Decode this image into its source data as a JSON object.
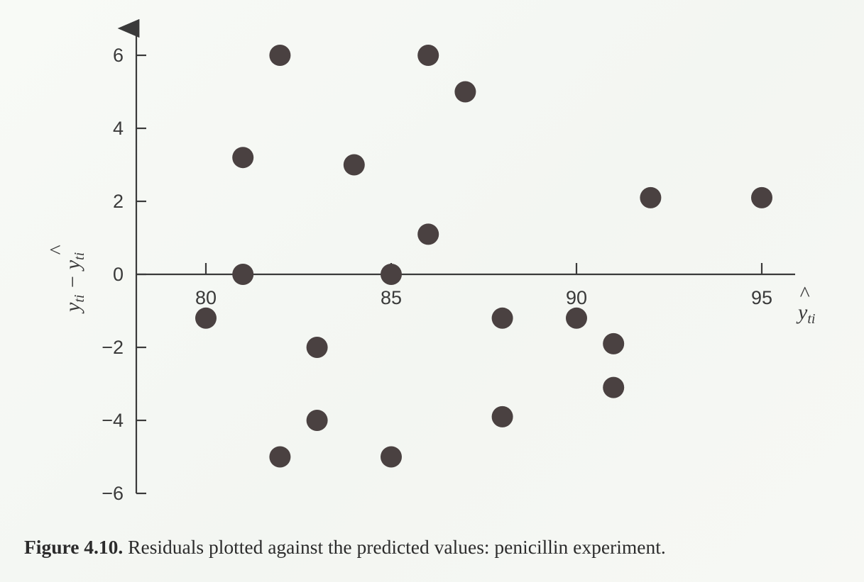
{
  "chart_data": {
    "type": "scatter",
    "x_ticks": [
      80,
      85,
      90,
      95
    ],
    "y_ticks": [
      6,
      4,
      2,
      0,
      -2,
      -4,
      -6
    ],
    "y_tick_labels": [
      "6",
      "4",
      "2",
      "0",
      "−2",
      "−4",
      "−6"
    ],
    "xlim": [
      78,
      96
    ],
    "ylim": [
      -6,
      6
    ],
    "ylabel": {
      "main": "y",
      "sub": "ti",
      "minus": " − ",
      "hat_main": "y",
      "hat_sub": "ti"
    },
    "xlabel": {
      "hat_main": "y",
      "hat_sub": "ti"
    },
    "grid": false,
    "points": [
      {
        "x": 80,
        "y": -1.2
      },
      {
        "x": 81,
        "y": 3.2
      },
      {
        "x": 81,
        "y": 0
      },
      {
        "x": 82,
        "y": 6
      },
      {
        "x": 82,
        "y": -5
      },
      {
        "x": 83,
        "y": -2
      },
      {
        "x": 83,
        "y": -4
      },
      {
        "x": 84,
        "y": 3
      },
      {
        "x": 85,
        "y": 0
      },
      {
        "x": 85,
        "y": -5
      },
      {
        "x": 86,
        "y": 6
      },
      {
        "x": 86,
        "y": 1.1
      },
      {
        "x": 87,
        "y": 5
      },
      {
        "x": 88,
        "y": -1.2
      },
      {
        "x": 88,
        "y": -3.9
      },
      {
        "x": 90,
        "y": -1.2
      },
      {
        "x": 91,
        "y": -1.9
      },
      {
        "x": 91,
        "y": -3.1
      },
      {
        "x": 92,
        "y": 2.1
      },
      {
        "x": 95,
        "y": 2.1
      }
    ]
  },
  "caption": {
    "label": "Figure 4.10.",
    "text": " Residuals plotted against the predicted values: penicillin experiment."
  }
}
